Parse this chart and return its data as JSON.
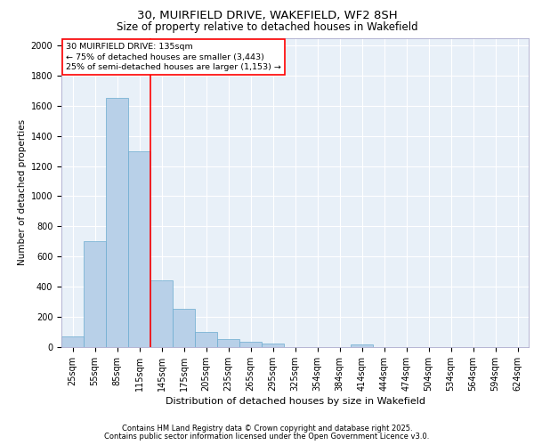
{
  "title_line1": "30, MUIRFIELD DRIVE, WAKEFIELD, WF2 8SH",
  "title_line2": "Size of property relative to detached houses in Wakefield",
  "xlabel": "Distribution of detached houses by size in Wakefield",
  "ylabel": "Number of detached properties",
  "footnote_line1": "Contains HM Land Registry data © Crown copyright and database right 2025.",
  "footnote_line2": "Contains public sector information licensed under the Open Government Licence v3.0.",
  "categories": [
    "25sqm",
    "55sqm",
    "85sqm",
    "115sqm",
    "145sqm",
    "175sqm",
    "205sqm",
    "235sqm",
    "265sqm",
    "295sqm",
    "325sqm",
    "354sqm",
    "384sqm",
    "414sqm",
    "444sqm",
    "474sqm",
    "504sqm",
    "534sqm",
    "564sqm",
    "594sqm",
    "624sqm"
  ],
  "values": [
    70,
    700,
    1650,
    1300,
    445,
    255,
    100,
    55,
    35,
    25,
    0,
    0,
    0,
    20,
    0,
    0,
    0,
    0,
    0,
    0,
    0
  ],
  "bar_color": "#b8d0e8",
  "bar_edge_color": "#6aabcf",
  "background_color": "#e8f0f8",
  "grid_color": "#ffffff",
  "vline_color": "red",
  "vline_x_index": 3.5,
  "box_edge_color": "red",
  "annotation_line1": "30 MUIRFIELD DRIVE: 135sqm",
  "annotation_line2": "← 75% of detached houses are smaller (3,443)",
  "annotation_line3": "25% of semi-detached houses are larger (1,153) →",
  "ylim": [
    0,
    2050
  ],
  "yticks": [
    0,
    200,
    400,
    600,
    800,
    1000,
    1200,
    1400,
    1600,
    1800,
    2000
  ],
  "title_fontsize": 9.5,
  "subtitle_fontsize": 8.5,
  "ylabel_fontsize": 7.5,
  "xlabel_fontsize": 8,
  "tick_fontsize": 7,
  "annot_fontsize": 6.8,
  "footnote_fontsize": 6
}
